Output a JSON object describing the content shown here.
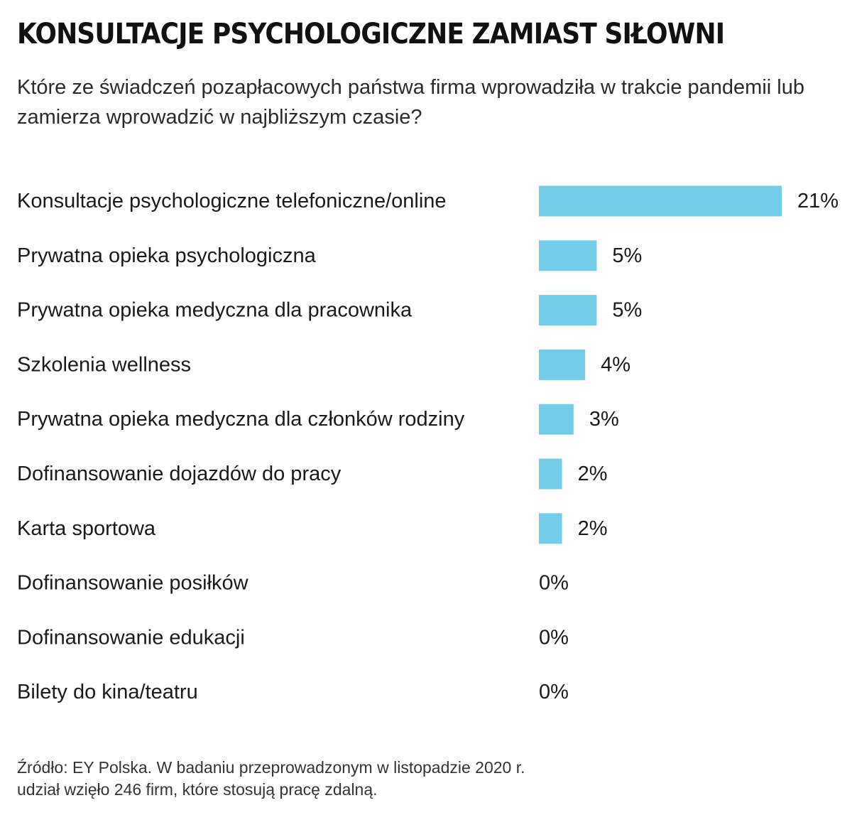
{
  "title": "KONSULTACJE PSYCHOLOGICZNE ZAMIAST SIŁOWNI",
  "subtitle": "Które ze świadczeń pozapłacowych państwa firma wprowadziła w trakcie pandemii lub zamierza wprowadzić w najbliższym czasie?",
  "source": {
    "line1": "Źródło: EY Polska. W badaniu przeprowadzonym w listopadzie 2020 r.",
    "line2": "udział wzięło 246 firm, które stosują pracę zdalną."
  },
  "chart_data": {
    "type": "bar",
    "orientation": "horizontal",
    "categories": [
      "Konsultacje psychologiczne telefoniczne/online",
      "Prywatna opieka psychologiczna",
      "Prywatna opieka medyczna dla pracownika",
      "Szkolenia wellness",
      "Prywatna opieka medyczna dla członków rodziny",
      "Dofinansowanie dojazdów do pracy",
      "Karta sportowa",
      "Dofinansowanie posiłków",
      "Dofinansowanie edukacji",
      "Bilety do kina/teatru"
    ],
    "values": [
      21,
      5,
      5,
      4,
      3,
      2,
      2,
      0,
      0,
      0
    ],
    "value_labels": [
      "21%",
      "5%",
      "5%",
      "4%",
      "3%",
      "2%",
      "2%",
      "0%",
      "0%",
      "0%"
    ],
    "unit": "%",
    "bar_color": "#72cde9",
    "grid": false,
    "axes_visible": false
  }
}
